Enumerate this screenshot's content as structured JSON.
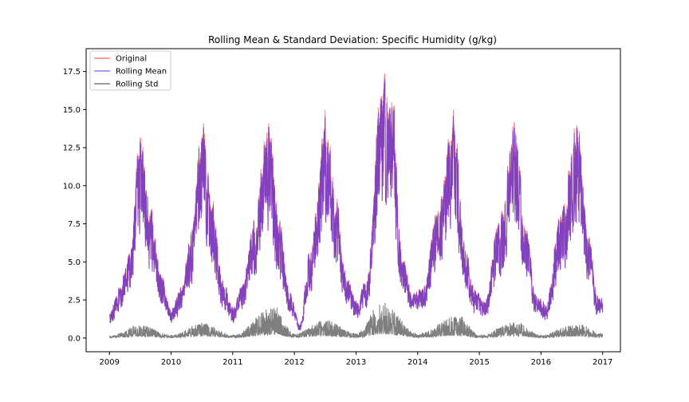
{
  "chart_data": {
    "type": "line",
    "title": "Rolling Mean & Standard Deviation: Specific Humidity (g/kg)",
    "xlabel": "",
    "ylabel": "",
    "x_range": [
      "2008-08-15",
      "2017-04-15"
    ],
    "ylim": [
      -0.9,
      19.0
    ],
    "x_ticks": [
      "2009",
      "2010",
      "2011",
      "2012",
      "2013",
      "2014",
      "2015",
      "2016",
      "2017"
    ],
    "y_ticks": [
      0.0,
      2.5,
      5.0,
      7.5,
      10.0,
      12.5,
      15.0,
      17.5
    ],
    "y_tick_labels": [
      "0.0",
      "2.5",
      "5.0",
      "7.5",
      "10.0",
      "12.5",
      "15.0",
      "17.5"
    ],
    "grid": false,
    "legend_position": "top-left",
    "colors": {
      "original": "#ff7f7f",
      "rolling_mean": "#7f7fff",
      "rolling_std": "#7f7f7f",
      "overlap": "#7b3fc4"
    },
    "series": [
      {
        "name": "Original",
        "description_points": [
          {
            "x": "2009-01",
            "y": 1.8
          },
          {
            "x": "2009-03",
            "y": 3.5
          },
          {
            "x": "2009-05",
            "y": 6.0
          },
          {
            "x": "2009-07",
            "y": 14.2
          },
          {
            "x": "2009-09",
            "y": 9.0
          },
          {
            "x": "2009-11",
            "y": 4.5
          },
          {
            "x": "2010-01",
            "y": 2.0
          },
          {
            "x": "2010-03",
            "y": 3.5
          },
          {
            "x": "2010-05",
            "y": 7.5
          },
          {
            "x": "2010-07",
            "y": 14.6
          },
          {
            "x": "2010-09",
            "y": 9.5
          },
          {
            "x": "2010-11",
            "y": 4.0
          },
          {
            "x": "2011-01",
            "y": 2.2
          },
          {
            "x": "2011-03",
            "y": 3.8
          },
          {
            "x": "2011-05",
            "y": 8.0
          },
          {
            "x": "2011-08",
            "y": 15.1
          },
          {
            "x": "2011-10",
            "y": 8.0
          },
          {
            "x": "2011-12",
            "y": 3.5
          },
          {
            "x": "2012-02",
            "y": 1.0
          },
          {
            "x": "2012-04",
            "y": 6.0
          },
          {
            "x": "2012-07",
            "y": 15.4
          },
          {
            "x": "2012-09",
            "y": 10.0
          },
          {
            "x": "2012-11",
            "y": 4.5
          },
          {
            "x": "2013-01",
            "y": 2.5
          },
          {
            "x": "2013-03",
            "y": 4.0
          },
          {
            "x": "2013-06",
            "y": 18.1
          },
          {
            "x": "2013-08",
            "y": 16.7
          },
          {
            "x": "2013-10",
            "y": 6.0
          },
          {
            "x": "2013-12",
            "y": 3.0
          },
          {
            "x": "2014-02",
            "y": 3.5
          },
          {
            "x": "2014-05",
            "y": 9.0
          },
          {
            "x": "2014-08",
            "y": 15.4
          },
          {
            "x": "2014-10",
            "y": 7.0
          },
          {
            "x": "2014-12",
            "y": 3.5
          },
          {
            "x": "2015-02",
            "y": 2.5
          },
          {
            "x": "2015-05",
            "y": 8.5
          },
          {
            "x": "2015-08",
            "y": 15.0
          },
          {
            "x": "2015-10",
            "y": 8.0
          },
          {
            "x": "2015-12",
            "y": 3.0
          },
          {
            "x": "2016-02",
            "y": 2.5
          },
          {
            "x": "2016-05",
            "y": 9.0
          },
          {
            "x": "2016-08",
            "y": 15.0
          },
          {
            "x": "2016-10",
            "y": 8.0
          },
          {
            "x": "2016-12",
            "y": 3.0
          }
        ]
      },
      {
        "name": "Rolling Mean",
        "description": "nearly identical to Original"
      },
      {
        "name": "Rolling Std",
        "description_points": [
          {
            "x": "2009-01",
            "y": 0.15
          },
          {
            "x": "2009-07",
            "y": 0.9
          },
          {
            "x": "2010-01",
            "y": 0.2
          },
          {
            "x": "2010-07",
            "y": 1.0
          },
          {
            "x": "2011-01",
            "y": 0.2
          },
          {
            "x": "2011-09",
            "y": 2.1
          },
          {
            "x": "2012-01",
            "y": 0.3
          },
          {
            "x": "2012-07",
            "y": 1.2
          },
          {
            "x": "2013-01",
            "y": 0.3
          },
          {
            "x": "2013-06",
            "y": 2.4
          },
          {
            "x": "2014-01",
            "y": 0.3
          },
          {
            "x": "2014-09",
            "y": 1.5
          },
          {
            "x": "2015-01",
            "y": 0.2
          },
          {
            "x": "2015-08",
            "y": 1.1
          },
          {
            "x": "2016-01",
            "y": 0.2
          },
          {
            "x": "2016-08",
            "y": 1.0
          },
          {
            "x": "2017-01",
            "y": 0.3
          }
        ]
      }
    ]
  }
}
